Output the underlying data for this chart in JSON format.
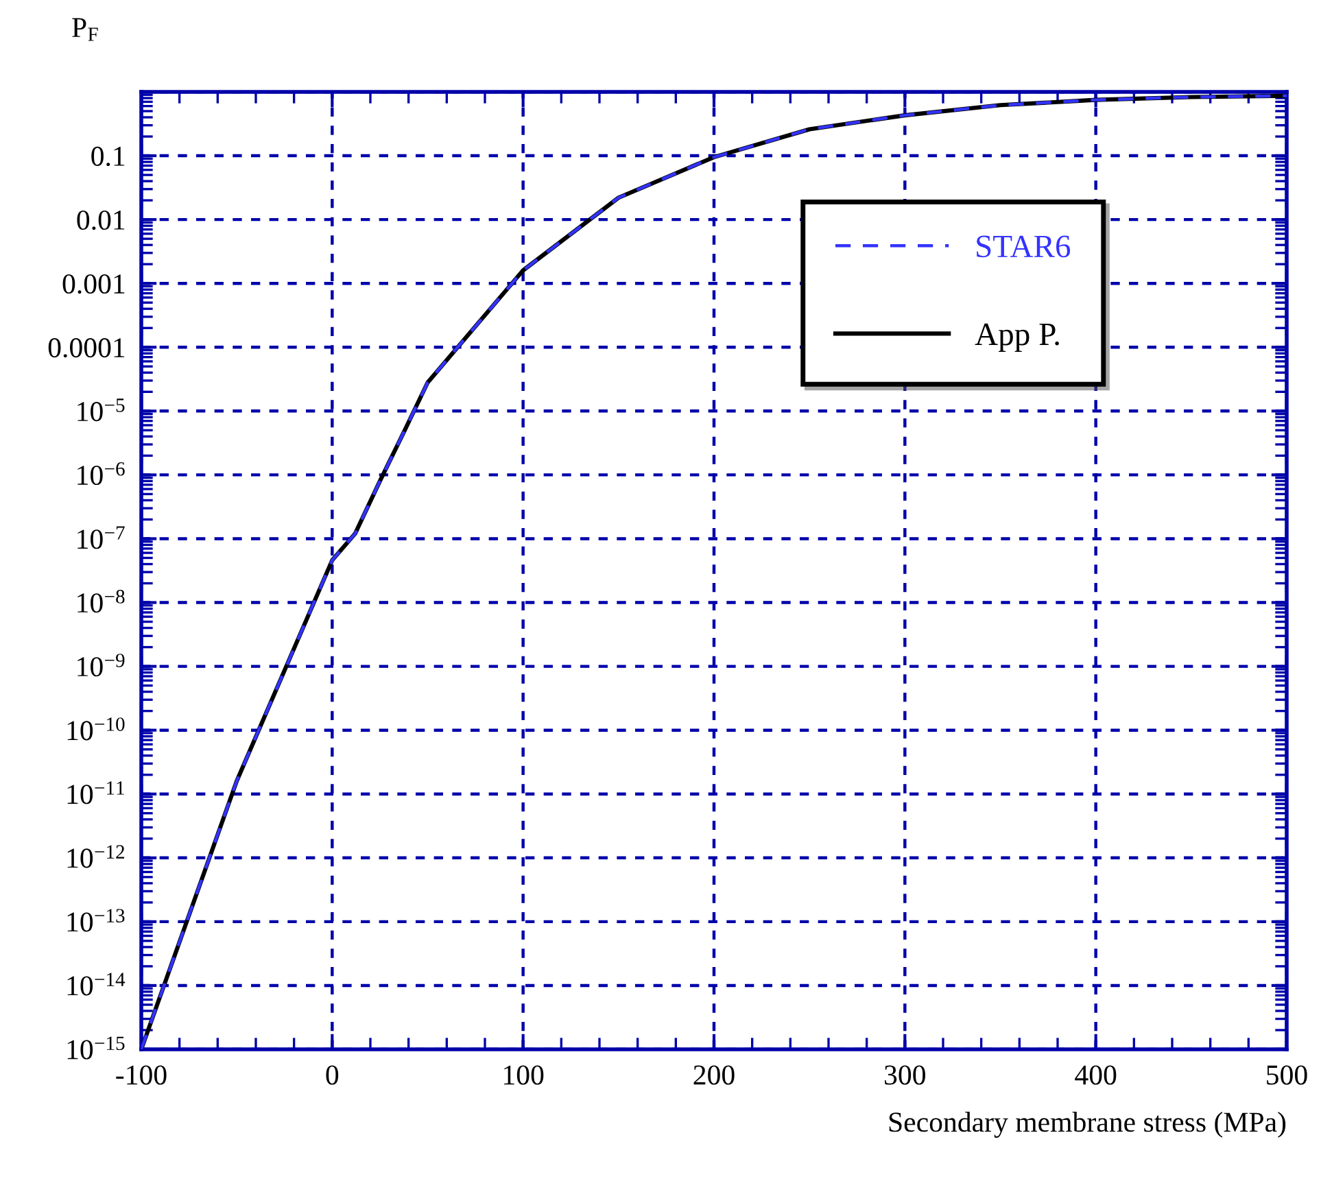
{
  "chart_data": {
    "type": "line",
    "xlabel": "Secondary membrane stress (MPa)",
    "ylabel": "P$_{F}$",
    "x": [
      -100,
      -50,
      0,
      12,
      25,
      38,
      50,
      100,
      150,
      200,
      250,
      300,
      350,
      400,
      450,
      500
    ],
    "series": [
      {
        "name": "STAR6",
        "color": "#3333ff",
        "line_style": "dashed",
        "values": [
          1e-15,
          1.6e-11,
          4.6e-08,
          1.2e-07,
          8e-07,
          5e-06,
          2.8e-05,
          0.0016,
          0.022,
          0.095,
          0.26,
          0.43,
          0.62,
          0.75,
          0.83,
          0.87
        ]
      },
      {
        "name": "App P.",
        "color": "#000000",
        "line_style": "solid",
        "values": [
          1e-15,
          1.6e-11,
          4.6e-08,
          1.2e-07,
          8e-07,
          5e-06,
          2.8e-05,
          0.0016,
          0.022,
          0.095,
          0.26,
          0.43,
          0.62,
          0.75,
          0.83,
          0.87
        ]
      }
    ],
    "log": "y",
    "xlim": [
      -100,
      500
    ],
    "ylim": [
      1e-15,
      1
    ],
    "xticks": [
      -100,
      0,
      100,
      200,
      300,
      400,
      500
    ],
    "yticks": [
      {
        "value": 1e-15,
        "label": "10$^{−15}$"
      },
      {
        "value": 1e-14,
        "label": "10$^{−14}$"
      },
      {
        "value": 1e-13,
        "label": "10$^{−13}$"
      },
      {
        "value": 1e-12,
        "label": "10$^{−12}$"
      },
      {
        "value": 1e-11,
        "label": "10$^{−11}$"
      },
      {
        "value": 1e-10,
        "label": "10$^{−10}$"
      },
      {
        "value": 1e-09,
        "label": "10$^{−9}$"
      },
      {
        "value": 1e-08,
        "label": "10$^{−8}$"
      },
      {
        "value": 1e-07,
        "label": "10$^{−7}$"
      },
      {
        "value": 1e-06,
        "label": "10$^{−6}$"
      },
      {
        "value": 1e-05,
        "label": "10$^{−5}$"
      },
      {
        "value": 0.0001,
        "label": "0.0001"
      },
      {
        "value": 0.001,
        "label": "0.001"
      },
      {
        "value": 0.01,
        "label": "0.01"
      },
      {
        "value": 0.1,
        "label": "0.1"
      },
      {
        "value": 1,
        "label": null
      }
    ],
    "grid": true,
    "legend": "top right",
    "marker": "none"
  }
}
